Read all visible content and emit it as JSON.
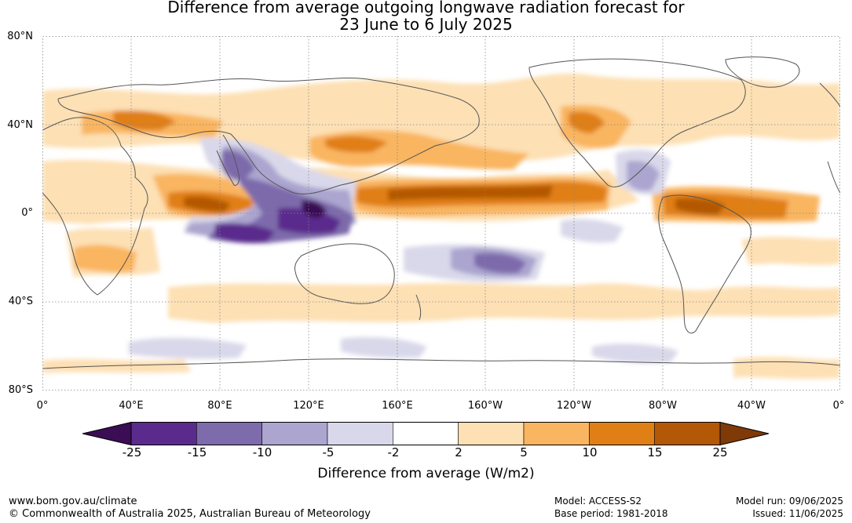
{
  "title_line1": "Difference from average outgoing longwave radiation forecast for",
  "title_line2": "23 June to 6 July 2025",
  "lat_labels": [
    "80°N",
    "40°N",
    "0°",
    "40°S",
    "80°S"
  ],
  "lon_labels": [
    "0°",
    "40°E",
    "80°E",
    "120°E",
    "160°E",
    "160°W",
    "120°W",
    "80°W",
    "40°W",
    "0°"
  ],
  "colorbar": {
    "ticks": [
      "-25",
      "-15",
      "-10",
      "-5",
      "-2",
      "2",
      "5",
      "10",
      "15",
      "25"
    ],
    "colors": [
      "#3b0d54",
      "#5a2a8c",
      "#7d6bab",
      "#aba5cf",
      "#d9d8ea",
      "#ffffff",
      "#fde0b4",
      "#f9b560",
      "#e07f15",
      "#b35806",
      "#7f3a08"
    ],
    "label": "Difference from average (W/m2)"
  },
  "footer": {
    "website": "www.bom.gov.au/climate",
    "copyright": "© Commonwealth of Australia 2025, Australian Bureau of Meteorology",
    "model": "Model: ACCESS-S2",
    "base_period": "Base period: 1981-2018",
    "model_run": "Model run: 09/06/2025",
    "issued": "Issued: 11/06/2025"
  }
}
